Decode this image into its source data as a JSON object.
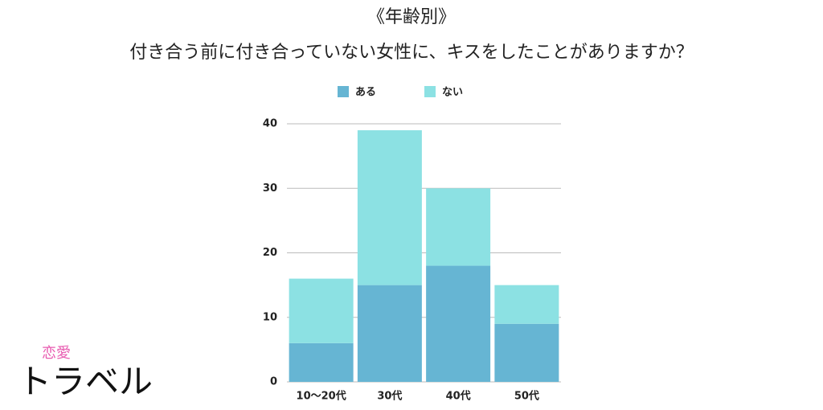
{
  "chart_data": {
    "type": "stacked_bar",
    "title": "《年齢別》",
    "subtitle": "付き合う前に付き合っていない女性に、キスをしたことがありますか？",
    "categories": [
      "10〜20代",
      "30代",
      "40代",
      "50代"
    ],
    "series": [
      {
        "name": "ある",
        "color": "#66b5d3",
        "values": [
          6,
          15,
          18,
          9
        ]
      },
      {
        "name": "ない",
        "color": "#8ce1e3",
        "values": [
          10,
          24,
          12,
          6
        ]
      }
    ],
    "ylim": [
      0,
      40
    ],
    "yticks": [
      0,
      10,
      20,
      30,
      40
    ],
    "grid": true,
    "legend": "top"
  },
  "logo": {
    "small": "恋愛",
    "main": "トラベル"
  }
}
